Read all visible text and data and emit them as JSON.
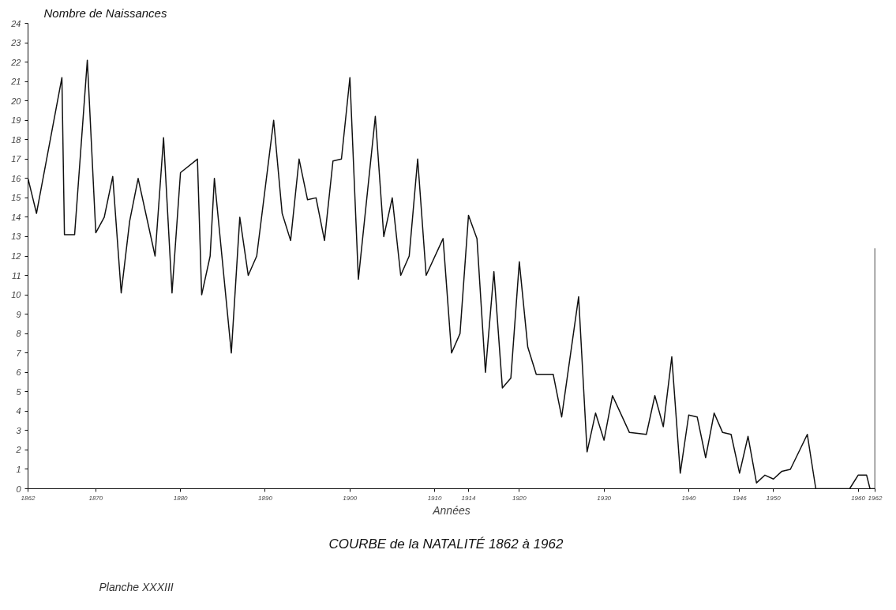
{
  "chart_data": {
    "type": "line",
    "title": "COURBE de la NATALITÉ    1862 à 1962",
    "xlabel": "Années",
    "ylabel": "Nombre de Naissances",
    "annotations": [
      "Planche XXXIII"
    ],
    "x": [
      1862,
      1863,
      1866,
      1866.3,
      1867.5,
      1869,
      1870,
      1871,
      1872,
      1873,
      1874,
      1875,
      1877,
      1878,
      1879,
      1880,
      1882,
      1882.5,
      1883.5,
      1884,
      1886,
      1887,
      1888,
      1889,
      1891,
      1892,
      1893,
      1894,
      1895,
      1896,
      1897,
      1898,
      1899,
      1900,
      1901,
      1903,
      1904,
      1905,
      1906,
      1907,
      1908,
      1909,
      1911,
      1912,
      1913,
      1914,
      1915,
      1916,
      1917,
      1918,
      1919,
      1920,
      1921,
      1922,
      1924,
      1925,
      1927,
      1928,
      1929,
      1930,
      1931,
      1933,
      1935,
      1936,
      1937,
      1938,
      1939,
      1940,
      1941,
      1942,
      1943,
      1944,
      1945,
      1946,
      1947,
      1948,
      1949,
      1950,
      1951,
      1952,
      1954,
      1955,
      1959,
      1960,
      1961,
      1961.4,
      1962,
      1962
    ],
    "series": [
      {
        "color": "#111111",
        "values": [
          16,
          14.2,
          21.2,
          13.1,
          13.1,
          22.1,
          13.2,
          14,
          16.1,
          10.1,
          13.8,
          16,
          12,
          18.1,
          10.1,
          16.3,
          17,
          10,
          12,
          16,
          7,
          14,
          11,
          12,
          19,
          14.2,
          12.8,
          17,
          14.9,
          15,
          12.8,
          16.9,
          17,
          21.2,
          10.8,
          19.2,
          13,
          15,
          11,
          12,
          17,
          11,
          12.9,
          7,
          8,
          14.1,
          12.9,
          6,
          11.2,
          5.2,
          5.7,
          11.7,
          7.3,
          5.9,
          5.9,
          3.7,
          9.9,
          1.9,
          3.9,
          2.5,
          4.8,
          2.9,
          2.8,
          4.8,
          3.2,
          6.8,
          0.8,
          3.8,
          3.7,
          1.6,
          3.9,
          2.9,
          2.8,
          0.8,
          2.7,
          0.3,
          0.7,
          0.5,
          0.9,
          1,
          2.8,
          0,
          0,
          0.7,
          0.7,
          0,
          0,
          12.4
        ]
      }
    ],
    "xlim": [
      1862,
      1962
    ],
    "ylim": [
      0,
      24
    ],
    "xticks": [
      1862,
      1870,
      1880,
      1890,
      1900,
      1910,
      1914,
      1920,
      1930,
      1940,
      1946,
      1950,
      1960,
      1962
    ],
    "yticks": [
      0,
      1,
      2,
      3,
      4,
      5,
      6,
      7,
      8,
      9,
      10,
      11,
      12,
      13,
      14,
      15,
      16,
      17,
      18,
      19,
      20,
      21,
      22,
      23,
      24
    ]
  }
}
